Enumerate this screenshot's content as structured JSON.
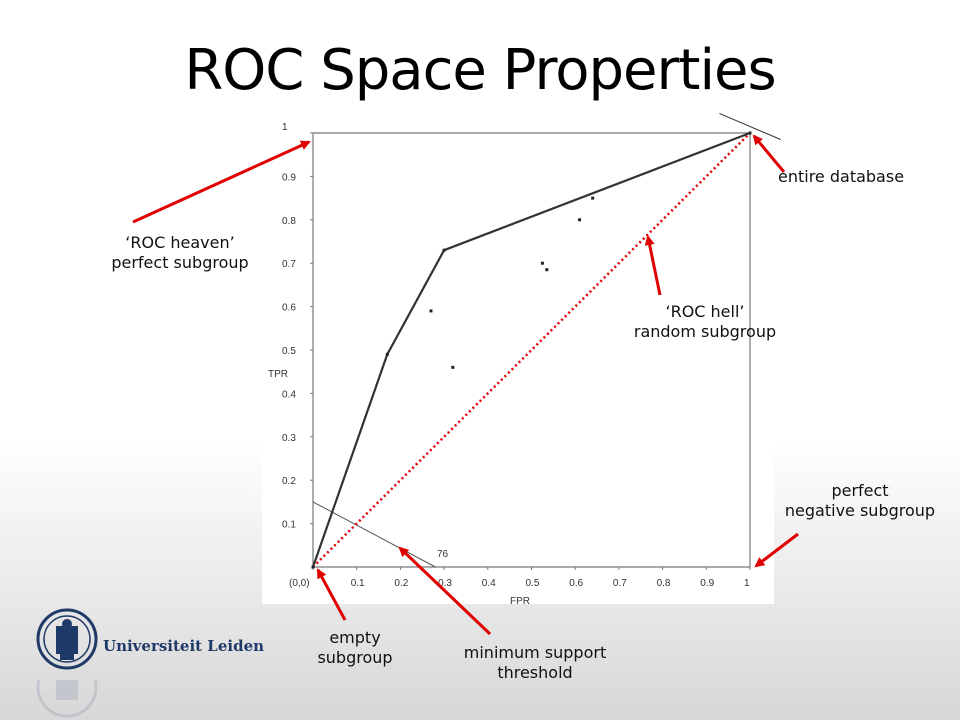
{
  "slide": {
    "title": "ROC Space Properties",
    "logo_text": "Universiteit Leiden"
  },
  "annotations": {
    "heaven_line1": "‘ROC heaven’",
    "heaven_line2": "perfect subgroup",
    "hell_line1": "‘ROC hell’",
    "hell_line2": "random subgroup",
    "entire": "entire database",
    "perfect_neg_line1": "perfect",
    "perfect_neg_line2": "negative subgroup",
    "empty_line1": "empty",
    "empty_line2": "subgroup",
    "minsup_line1": "minimum support",
    "minsup_line2": "threshold"
  },
  "colors": {
    "arrow": "#e00000",
    "curve": "#333333",
    "axis": "#777777"
  },
  "chart_data": {
    "type": "scatter",
    "xlabel": "FPR",
    "ylabel": "TPR",
    "xlim": [
      0,
      1
    ],
    "ylim": [
      0,
      1
    ],
    "x_ticks": [
      "(0,0)",
      "0.1",
      "0.2",
      "0.3",
      "0.4",
      "0.5",
      "0.6",
      "0.7",
      "0.8",
      "0.9",
      "1"
    ],
    "y_ticks": [
      "1",
      "0.9",
      "0.8",
      "0.7",
      "0.6",
      "0.5",
      "0.4",
      "0.3",
      "0.2",
      "0.1"
    ],
    "hull": [
      [
        0,
        0
      ],
      [
        0.17,
        0.49
      ],
      [
        0.3,
        0.73
      ],
      [
        1,
        1
      ]
    ],
    "points": [
      [
        0.27,
        0.59
      ],
      [
        0.32,
        0.46
      ],
      [
        0.525,
        0.7
      ],
      [
        0.535,
        0.685
      ],
      [
        0.61,
        0.8
      ],
      [
        0.64,
        0.85
      ]
    ],
    "diagonal": [
      [
        0,
        0
      ],
      [
        1,
        1
      ]
    ],
    "min_support_line": {
      "points": [
        [
          0,
          0.15
        ],
        [
          0.28,
          0
        ]
      ],
      "label": "76"
    },
    "grid": false
  }
}
